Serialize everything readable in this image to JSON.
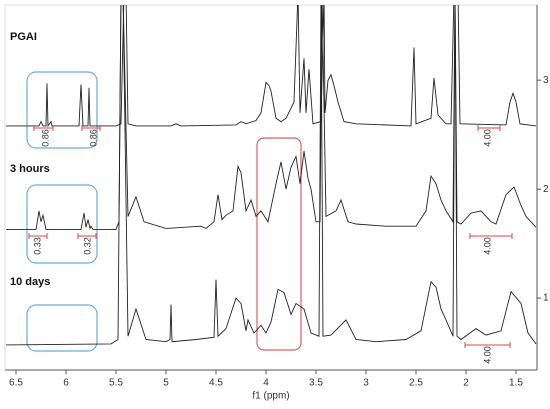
{
  "chart_data": {
    "type": "line",
    "xlabel": "f1 (ppm)",
    "xlim": [
      6.61,
      1.29
    ],
    "xticks": [
      6.5,
      6.0,
      5.5,
      5.0,
      4.5,
      4.0,
      3.5,
      3.0,
      2.5,
      2.0,
      1.5
    ],
    "ylim": [
      0.34,
      3.69
    ],
    "yticks": [
      1,
      2,
      3
    ],
    "x_reversed": true,
    "series": [
      {
        "name": "PGAI",
        "color": "#222222",
        "integrals": [
          "0.86",
          "0.86",
          "4.00"
        ],
        "x": [
          6.6,
          6.27,
          6.25,
          6.23,
          6.2,
          6.19,
          6.18,
          6.15,
          6.14,
          5.87,
          5.85,
          5.83,
          5.78,
          5.77,
          5.76,
          5.5,
          5.45,
          5.42,
          5.4,
          5.38,
          5.3,
          4.95,
          4.9,
          4.85,
          4.3,
          4.25,
          4.2,
          4.1,
          4.05,
          4.0,
          3.97,
          3.95,
          3.9,
          3.85,
          3.8,
          3.72,
          3.68,
          3.66,
          3.62,
          3.6,
          3.57,
          3.53,
          3.45,
          3.42,
          3.41,
          3.38,
          3.35,
          3.32,
          3.28,
          3.22,
          3.1,
          2.55,
          2.52,
          2.5,
          2.35,
          2.32,
          2.28,
          2.2,
          2.15,
          2.12,
          2.08,
          2.06,
          1.6,
          1.56,
          1.53,
          1.5,
          1.46,
          1.3
        ],
        "values": [
          2.58,
          2.58,
          2.62,
          2.58,
          2.58,
          2.97,
          2.58,
          2.62,
          2.58,
          2.58,
          2.96,
          2.58,
          2.58,
          2.93,
          2.58,
          2.58,
          2.6,
          3.8,
          3.8,
          2.6,
          2.58,
          2.58,
          2.6,
          2.58,
          2.59,
          2.62,
          2.6,
          2.63,
          2.7,
          2.98,
          2.95,
          2.9,
          2.65,
          2.62,
          2.65,
          2.8,
          3.8,
          2.7,
          3.2,
          2.7,
          3.1,
          2.6,
          2.62,
          3.8,
          2.7,
          3.0,
          3.05,
          2.95,
          2.8,
          2.62,
          2.6,
          2.58,
          3.3,
          2.6,
          2.65,
          3.02,
          2.68,
          2.6,
          2.6,
          3.8,
          3.8,
          2.6,
          2.59,
          2.8,
          2.88,
          2.8,
          2.6,
          2.58
        ]
      },
      {
        "name": "3 hours",
        "color": "#222222",
        "integrals": [
          "0.33",
          "0.32",
          "4.00"
        ],
        "x": [
          6.6,
          6.3,
          6.27,
          6.25,
          6.23,
          6.2,
          5.85,
          5.82,
          5.8,
          5.78,
          5.76,
          5.75,
          5.73,
          5.5,
          5.47,
          5.45,
          5.43,
          5.38,
          5.3,
          5.22,
          5.0,
          4.65,
          4.6,
          4.52,
          4.48,
          4.44,
          4.4,
          4.33,
          4.28,
          4.25,
          4.2,
          4.15,
          4.1,
          4.05,
          3.98,
          3.9,
          3.85,
          3.8,
          3.75,
          3.7,
          3.66,
          3.62,
          3.58,
          3.55,
          3.5,
          3.46,
          3.44,
          3.4,
          3.3,
          3.25,
          3.18,
          3.1,
          2.8,
          2.5,
          2.4,
          2.35,
          2.3,
          2.25,
          2.2,
          2.13,
          2.11,
          2.09,
          2.05,
          1.95,
          1.85,
          1.75,
          1.7,
          1.6,
          1.52,
          1.45,
          1.4,
          1.3
        ],
        "values": [
          1.63,
          1.63,
          1.8,
          1.7,
          1.76,
          1.63,
          1.63,
          1.78,
          1.65,
          1.72,
          1.64,
          1.66,
          1.63,
          1.63,
          1.7,
          3.8,
          3.8,
          1.75,
          1.93,
          1.7,
          1.64,
          1.66,
          1.64,
          1.7,
          1.95,
          1.72,
          1.76,
          1.8,
          2.21,
          2.15,
          1.8,
          1.9,
          1.75,
          1.8,
          1.7,
          2.05,
          2.25,
          2.0,
          2.2,
          2.3,
          2.05,
          2.35,
          2.1,
          2.0,
          1.7,
          1.7,
          3.8,
          1.75,
          1.8,
          1.9,
          1.7,
          1.68,
          1.66,
          1.66,
          1.8,
          2.12,
          2.05,
          1.9,
          1.8,
          1.7,
          3.8,
          1.7,
          1.68,
          1.78,
          1.8,
          1.7,
          1.68,
          1.95,
          2.02,
          1.85,
          1.75,
          1.65
        ]
      },
      {
        "name": "10 days",
        "color": "#222222",
        "integrals": [
          "4.00"
        ],
        "x": [
          6.6,
          5.55,
          5.48,
          5.45,
          5.43,
          5.38,
          5.3,
          5.2,
          5.0,
          4.96,
          4.95,
          4.94,
          4.7,
          4.52,
          4.5,
          4.48,
          4.4,
          4.3,
          4.25,
          4.2,
          4.18,
          4.12,
          4.05,
          4.0,
          3.95,
          3.88,
          3.82,
          3.75,
          3.7,
          3.62,
          3.55,
          3.47,
          3.45,
          3.43,
          3.35,
          3.2,
          3.1,
          2.9,
          2.6,
          2.45,
          2.35,
          2.3,
          2.25,
          2.2,
          2.13,
          2.11,
          2.09,
          2.05,
          1.9,
          1.8,
          1.65,
          1.55,
          1.45,
          1.38,
          1.3
        ],
        "values": [
          0.57,
          0.58,
          0.62,
          3.8,
          3.8,
          0.65,
          0.9,
          0.62,
          0.6,
          0.62,
          0.94,
          0.6,
          0.62,
          0.64,
          1.17,
          0.65,
          0.72,
          1.0,
          0.95,
          0.7,
          0.8,
          0.68,
          0.75,
          0.68,
          0.78,
          1.08,
          1.05,
          0.85,
          0.95,
          0.9,
          0.68,
          0.65,
          3.8,
          0.65,
          0.66,
          0.8,
          0.62,
          0.6,
          0.62,
          0.7,
          1.15,
          1.1,
          0.9,
          0.8,
          0.65,
          3.8,
          0.65,
          0.62,
          0.72,
          0.66,
          0.7,
          1.06,
          0.95,
          0.68,
          0.58
        ]
      }
    ]
  }
}
